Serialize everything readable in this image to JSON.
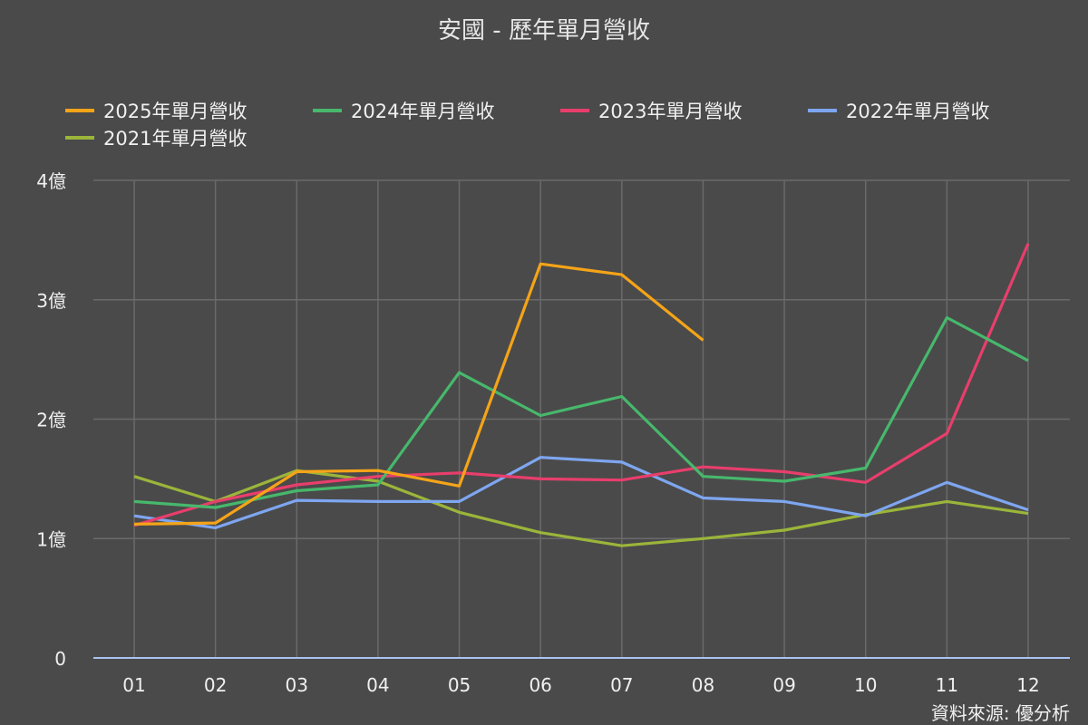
{
  "chart_data": {
    "type": "line",
    "title": "安國 - 歷年單月營收",
    "source_note": "資料來源: 優分析",
    "categories": [
      "01",
      "02",
      "03",
      "04",
      "05",
      "06",
      "07",
      "08",
      "09",
      "10",
      "11",
      "12"
    ],
    "y_ticks": [
      {
        "value": 0,
        "label": "0"
      },
      {
        "value": 1,
        "label": "1億"
      },
      {
        "value": 2,
        "label": "2億"
      },
      {
        "value": 3,
        "label": "3億"
      },
      {
        "value": 4,
        "label": "4億"
      }
    ],
    "ylim": [
      0,
      4
    ],
    "grid": true,
    "legend_position": "top",
    "series": [
      {
        "name": "2025年單月營收",
        "color": "#f5a418",
        "values": [
          1.12,
          1.13,
          1.56,
          1.57,
          1.44,
          3.3,
          3.21,
          2.66,
          null,
          null,
          null,
          null
        ]
      },
      {
        "name": "2024年單月營收",
        "color": "#47b86c",
        "values": [
          1.31,
          1.26,
          1.4,
          1.45,
          2.39,
          2.03,
          2.19,
          1.52,
          1.48,
          1.59,
          2.85,
          2.49
        ]
      },
      {
        "name": "2023年單月營收",
        "color": "#e83e6c",
        "values": [
          1.11,
          1.31,
          1.45,
          1.52,
          1.55,
          1.5,
          1.49,
          1.6,
          1.56,
          1.47,
          1.88,
          3.47
        ]
      },
      {
        "name": "2022年單月營收",
        "color": "#7ea6f0",
        "values": [
          1.19,
          1.09,
          1.32,
          1.31,
          1.31,
          1.68,
          1.64,
          1.34,
          1.31,
          1.19,
          1.47,
          1.24
        ]
      },
      {
        "name": "2021年單月營收",
        "color": "#9bb53a",
        "values": [
          1.52,
          1.31,
          1.57,
          1.48,
          1.22,
          1.05,
          0.94,
          1.0,
          1.07,
          1.2,
          1.31,
          1.21
        ]
      }
    ]
  }
}
